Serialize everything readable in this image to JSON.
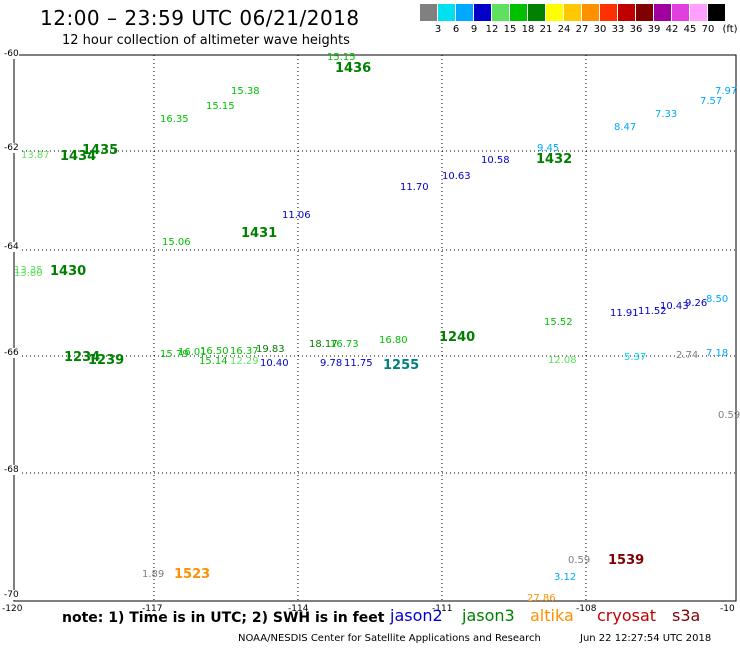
{
  "title": "12:00 – 23:59 UTC 06/21/2018",
  "subtitle": "12 hour collection of altimeter wave heights",
  "legend": {
    "unit": "(ft)",
    "bins": [
      {
        "label": "3",
        "color": "#808080"
      },
      {
        "label": "6",
        "color": "#00e0f0"
      },
      {
        "label": "9",
        "color": "#00a8ff"
      },
      {
        "label": "12",
        "color": "#0000c8"
      },
      {
        "label": "15",
        "color": "#60e060"
      },
      {
        "label": "18",
        "color": "#00c000"
      },
      {
        "label": "21",
        "color": "#008000"
      },
      {
        "label": "24",
        "color": "#ffff00"
      },
      {
        "label": "27",
        "color": "#ffc800"
      },
      {
        "label": "30",
        "color": "#ff9000"
      },
      {
        "label": "33",
        "color": "#ff3000"
      },
      {
        "label": "36",
        "color": "#c00000"
      },
      {
        "label": "39",
        "color": "#800000"
      },
      {
        "label": "42",
        "color": "#a000a0"
      },
      {
        "label": "45",
        "color": "#e040e0"
      },
      {
        "label": "70",
        "color": "#ffa0ff"
      },
      {
        "label": "",
        "color": "#000000"
      }
    ]
  },
  "axes": {
    "lon_ticks": [
      "-120",
      "-117",
      "-114",
      "-111",
      "-108",
      "-10"
    ],
    "lat_ticks": [
      "-60",
      "-62",
      "-64",
      "-66",
      "-68",
      "-70"
    ]
  },
  "note": "note: 1) Time is in UTC; 2) SWH is in feet",
  "satellites": [
    {
      "name": "jason2",
      "color": "#0000d0"
    },
    {
      "name": "jason3",
      "color": "#008000"
    },
    {
      "name": "altika",
      "color": "#ff9000"
    },
    {
      "name": "cryosat",
      "color": "#c00000"
    },
    {
      "name": "s3a",
      "color": "#800000"
    }
  ],
  "footer": "NOAA/NESDIS Center for Satellite Applications and Research",
  "stamp": "Jun 22 12:27:54 UTC 2018",
  "track_labels": [
    {
      "text": "1436",
      "color": "#008000"
    },
    {
      "text": "1434",
      "color": "#008000"
    },
    {
      "text": "1435",
      "color": "#008000"
    },
    {
      "text": "1432",
      "color": "#008000"
    },
    {
      "text": "1431",
      "color": "#008000"
    },
    {
      "text": "1430",
      "color": "#008000"
    },
    {
      "text": "1240",
      "color": "#008000"
    },
    {
      "text": "1255",
      "color": "#008080"
    },
    {
      "text": "1523",
      "color": "#ff9000"
    },
    {
      "text": "1539",
      "color": "#800000"
    },
    {
      "text": "1234",
      "color": "#008000"
    },
    {
      "text": "1239",
      "color": "#008000"
    }
  ],
  "swh_values": [
    {
      "text": "15.15",
      "color": "#00c000"
    },
    {
      "text": "13.87",
      "color": "#60e060"
    },
    {
      "text": "15.38",
      "color": "#00c000"
    },
    {
      "text": "16.35",
      "color": "#00c000"
    },
    {
      "text": "15.15",
      "color": "#00c000"
    },
    {
      "text": "13.35",
      "color": "#60e060"
    },
    {
      "text": "11.06",
      "color": "#0000c8"
    },
    {
      "text": "15.06",
      "color": "#00c000"
    },
    {
      "text": "13.80",
      "color": "#60e060"
    },
    {
      "text": "11.70",
      "color": "#0000c8"
    },
    {
      "text": "10.63",
      "color": "#0000c8"
    },
    {
      "text": "10.58",
      "color": "#0000c8"
    },
    {
      "text": "9.45",
      "color": "#00a8ff"
    },
    {
      "text": "8.47",
      "color": "#00a8ff"
    },
    {
      "text": "7.33",
      "color": "#00a8ff"
    },
    {
      "text": "7.57",
      "color": "#00a8ff"
    },
    {
      "text": "7.97",
      "color": "#00a8ff"
    },
    {
      "text": "18.17",
      "color": "#008000"
    },
    {
      "text": "16.73",
      "color": "#00c000"
    },
    {
      "text": "16.80",
      "color": "#00c000"
    },
    {
      "text": "15.52",
      "color": "#00c000"
    },
    {
      "text": "11.91",
      "color": "#0000c8"
    },
    {
      "text": "11.52",
      "color": "#0000c8"
    },
    {
      "text": "10.43",
      "color": "#0000c8"
    },
    {
      "text": "9.26",
      "color": "#0000c8"
    },
    {
      "text": "8.50",
      "color": "#00a8ff"
    },
    {
      "text": "5.37",
      "color": "#00e0f0"
    },
    {
      "text": "2.74",
      "color": "#808080"
    },
    {
      "text": "7.18",
      "color": "#00a8ff"
    },
    {
      "text": "12.08",
      "color": "#60e060"
    },
    {
      "text": "10.40",
      "color": "#0000c8"
    },
    {
      "text": "9.78",
      "color": "#0000c8"
    },
    {
      "text": "11.75",
      "color": "#0000c8"
    },
    {
      "text": "0.59",
      "color": "#808080"
    },
    {
      "text": "1.89",
      "color": "#808080"
    },
    {
      "text": "0.59",
      "color": "#808080"
    },
    {
      "text": "3.12",
      "color": "#00a8ff"
    },
    {
      "text": "27.86",
      "color": "#ff9000"
    },
    {
      "text": "15.14",
      "color": "#00c000"
    },
    {
      "text": "16.50",
      "color": "#00c000"
    },
    {
      "text": "16.37",
      "color": "#00c000"
    },
    {
      "text": "19.83",
      "color": "#008000"
    },
    {
      "text": "12.29",
      "color": "#60e060"
    },
    {
      "text": "16.01",
      "color": "#00c000"
    },
    {
      "text": "15.79",
      "color": "#00c000"
    }
  ]
}
